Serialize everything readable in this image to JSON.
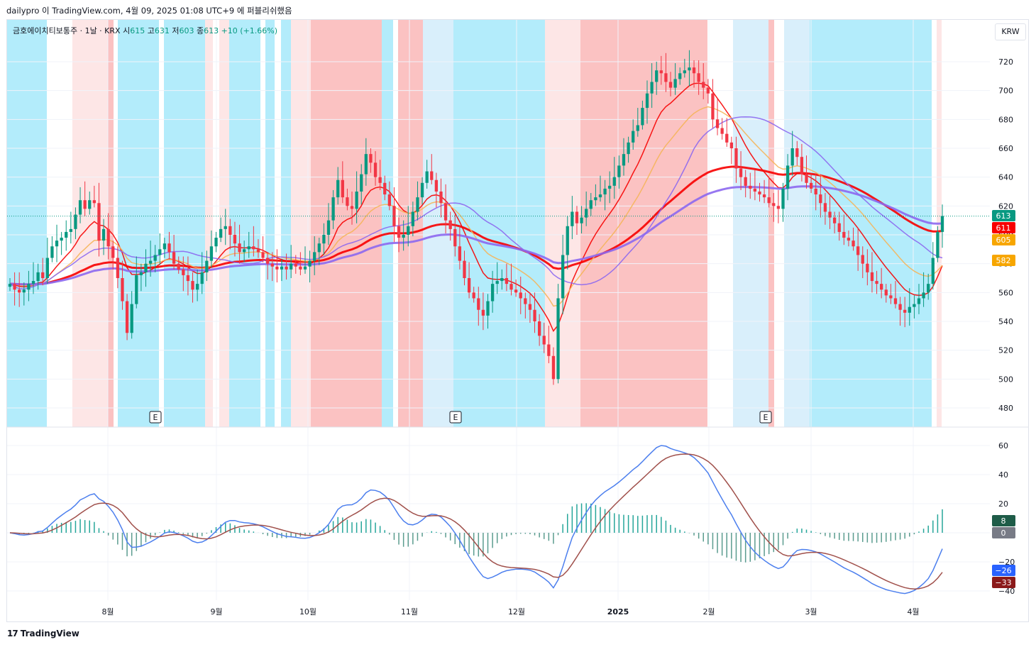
{
  "header": {
    "text": "dailypro 이 TradingView.com, 4월 09, 2025 01:08 UTC+9 에 퍼블리쉬했음"
  },
  "legend": {
    "symbol": "금호에이치티보통주 · 1날 · KRX",
    "open_label": "시",
    "open": "615",
    "high_label": "고",
    "high": "631",
    "low_label": "저",
    "low": "603",
    "close_label": "종",
    "close": "613",
    "change": "+10 (+1.66%)"
  },
  "currency": "KRW",
  "footer": {
    "logo": "17",
    "brand": "TradingView"
  },
  "colors": {
    "up": "#089981",
    "down": "#f23645",
    "ema_red": "#f70000",
    "purple": "#8c68f0",
    "orange": "#f5b55a",
    "macd": "#4c7fee",
    "signal": "#a0504b",
    "bg_red": "#fbc2c2",
    "bg_pink": "#fde6e6",
    "bg_cyan": "#b3ecfb",
    "bg_lcyan": "#d9effb"
  },
  "chart_data": [
    {
      "type": "candlestick",
      "x_ticks": [
        "8월",
        "9월",
        "10월",
        "11월",
        "12월",
        "2025",
        "2월",
        "3월",
        "4월"
      ],
      "y_ticks": [
        480,
        500,
        520,
        540,
        560,
        580,
        600,
        620,
        640,
        660,
        680,
        700,
        720
      ],
      "ylim": [
        466,
        734
      ],
      "earnings_marks": [
        "E",
        "E",
        "E"
      ],
      "price_tags": [
        {
          "value": 613,
          "label": "613",
          "color": "#089981"
        },
        {
          "value": 611,
          "label": "611",
          "color": "#f70000"
        },
        {
          "value": 605,
          "label": "605",
          "color": "#f7a600"
        },
        {
          "value": 582,
          "label": "582",
          "color": "#f7a600"
        }
      ],
      "close_series": [
        566,
        562,
        560,
        562,
        566,
        568,
        574,
        570,
        584,
        592,
        596,
        598,
        602,
        604,
        614,
        624,
        618,
        624,
        622,
        596,
        604,
        592,
        584,
        570,
        554,
        532,
        552,
        572,
        574,
        580,
        582,
        586,
        590,
        594,
        588,
        580,
        576,
        572,
        568,
        562,
        566,
        574,
        582,
        592,
        598,
        604,
        606,
        600,
        594,
        588,
        590,
        592,
        590,
        588,
        584,
        580,
        578,
        576,
        578,
        576,
        580,
        578,
        576,
        578,
        582,
        588,
        594,
        600,
        610,
        626,
        638,
        626,
        620,
        618,
        630,
        642,
        656,
        650,
        640,
        636,
        628,
        620,
        606,
        598,
        600,
        606,
        616,
        626,
        636,
        644,
        638,
        630,
        622,
        610,
        604,
        592,
        582,
        570,
        560,
        556,
        548,
        544,
        554,
        566,
        568,
        570,
        566,
        562,
        560,
        556,
        552,
        548,
        540,
        530,
        524,
        516,
        500,
        556,
        586,
        606,
        616,
        608,
        612,
        618,
        624,
        626,
        628,
        632,
        634,
        640,
        648,
        656,
        664,
        672,
        676,
        688,
        698,
        706,
        714,
        712,
        706,
        702,
        708,
        712,
        714,
        716,
        712,
        706,
        702,
        698,
        680,
        674,
        670,
        664,
        660,
        646,
        640,
        634,
        632,
        630,
        628,
        626,
        622,
        620,
        618,
        632,
        648,
        660,
        654,
        642,
        636,
        632,
        628,
        622,
        616,
        612,
        608,
        602,
        598,
        596,
        592,
        586,
        580,
        574,
        568,
        566,
        562,
        558,
        556,
        552,
        548,
        546,
        550,
        552,
        556,
        560,
        566,
        584,
        602,
        613
      ]
    },
    {
      "type": "macd",
      "y_ticks": [
        -40,
        -20,
        0,
        20,
        40,
        60
      ],
      "ylim": [
        -41,
        63
      ],
      "value_tags": [
        {
          "value": 8,
          "label": "8",
          "color": "#1e5c48"
        },
        {
          "value": 0,
          "label": "0",
          "color": "#787b86"
        },
        {
          "value": -26,
          "label": "−26",
          "color": "#2962ff"
        },
        {
          "value": -33,
          "label": "−33",
          "color": "#8b1a1a"
        }
      ]
    }
  ]
}
